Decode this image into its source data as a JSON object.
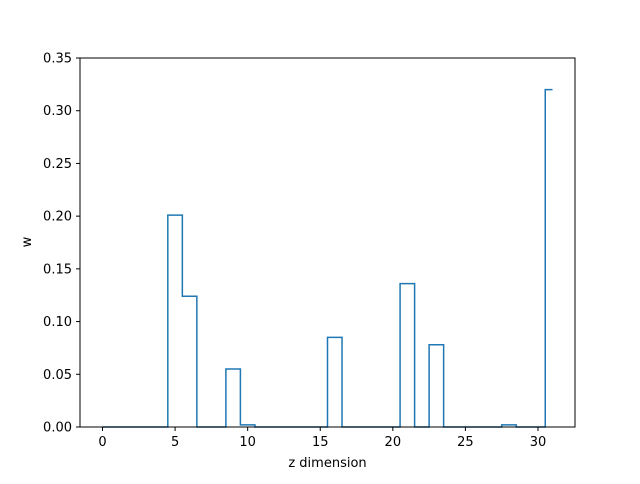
{
  "chart_data": {
    "type": "step",
    "style": "histogram-step (steps-mid, unfilled)",
    "xlabel": "z dimension",
    "ylabel": "w",
    "xlim": [
      -1.55,
      32.55
    ],
    "ylim": [
      0,
      0.35
    ],
    "xticks": [
      0,
      5,
      10,
      15,
      20,
      25,
      30
    ],
    "yticks": [
      0.0,
      0.05,
      0.1,
      0.15,
      0.2,
      0.25,
      0.3,
      0.35
    ],
    "ytick_labels": [
      "0.00",
      "0.05",
      "0.10",
      "0.15",
      "0.20",
      "0.25",
      "0.30",
      "0.35"
    ],
    "xtick_labels": [
      "0",
      "5",
      "10",
      "15",
      "20",
      "25",
      "30"
    ],
    "grid": false,
    "line_color": "#1f77b4",
    "x": [
      0,
      1,
      2,
      3,
      4,
      5,
      6,
      7,
      8,
      9,
      10,
      11,
      12,
      13,
      14,
      15,
      16,
      17,
      18,
      19,
      20,
      21,
      22,
      23,
      24,
      25,
      26,
      27,
      28,
      29,
      30,
      31
    ],
    "values": [
      0,
      0,
      0,
      0,
      0,
      0.201,
      0.124,
      0,
      0,
      0.055,
      0.002,
      0,
      0,
      0,
      0,
      0,
      0.085,
      0,
      0,
      0,
      0,
      0.136,
      0,
      0.078,
      0,
      0,
      0,
      0,
      0.002,
      0,
      0,
      0.32
    ]
  }
}
